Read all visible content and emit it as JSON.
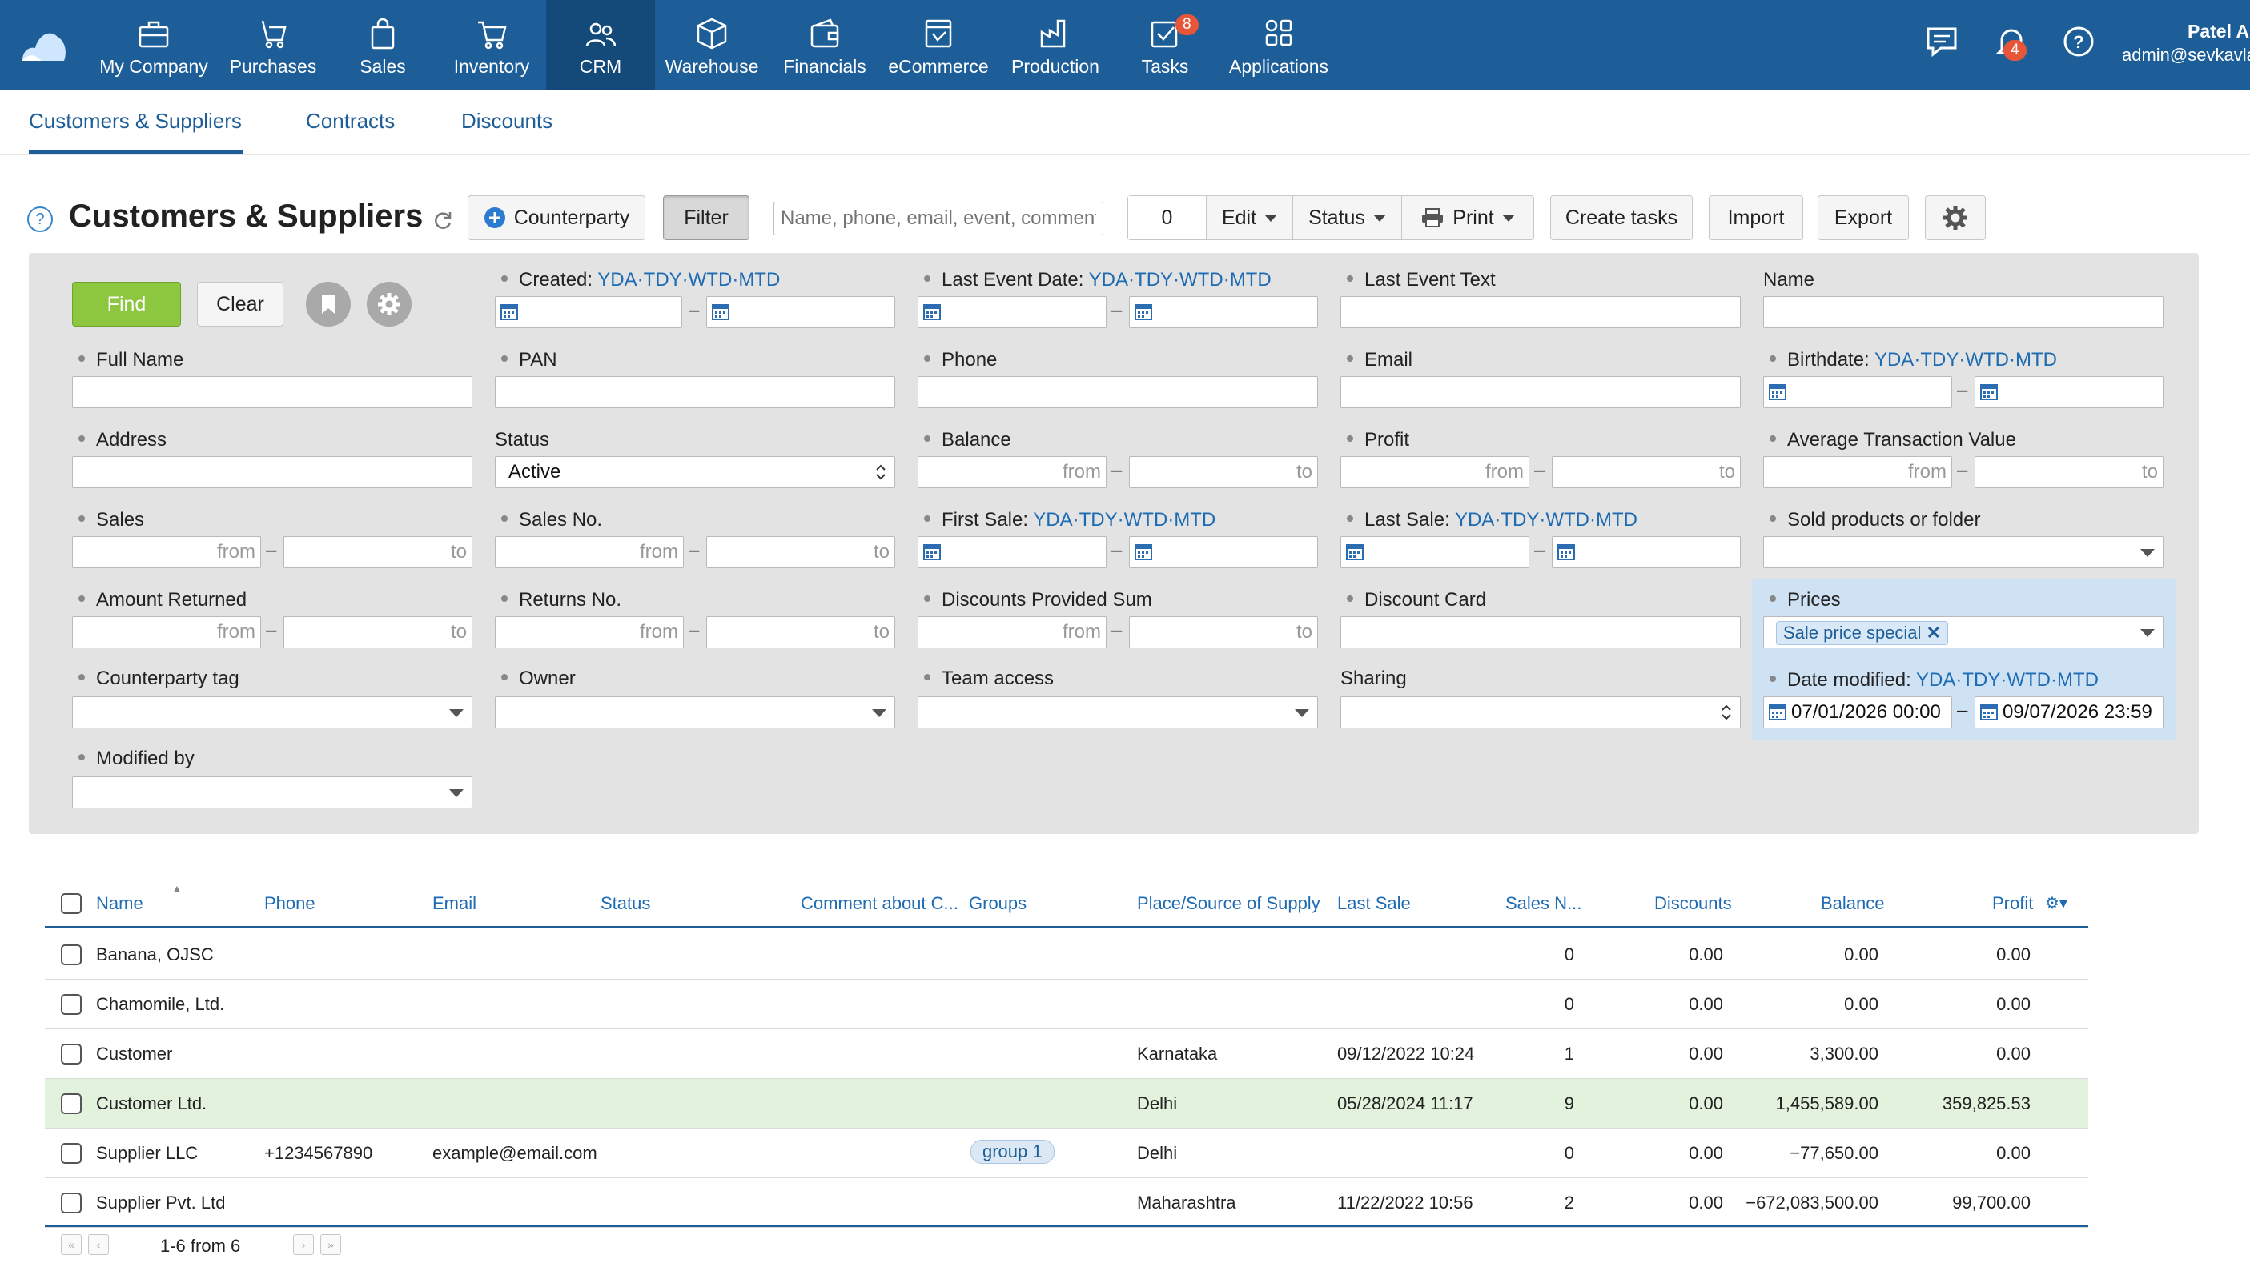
{
  "topnav": {
    "items": [
      {
        "label": "My Company",
        "icon": "briefcase-icon"
      },
      {
        "label": "Purchases",
        "icon": "purchases-icon"
      },
      {
        "label": "Sales",
        "icon": "shopping-bag-icon"
      },
      {
        "label": "Inventory",
        "icon": "cart-icon"
      },
      {
        "label": "CRM",
        "icon": "users-icon"
      },
      {
        "label": "Warehouse",
        "icon": "box-icon"
      },
      {
        "label": "Financials",
        "icon": "wallet-icon"
      },
      {
        "label": "eCommerce",
        "icon": "storefront-icon"
      },
      {
        "label": "Production",
        "icon": "factory-icon"
      },
      {
        "label": "Tasks",
        "icon": "checkbox-icon"
      },
      {
        "label": "Applications",
        "icon": "apps-grid-icon"
      }
    ],
    "tasks_badge": "8",
    "notifications_badge": "4",
    "user_name": "Patel A",
    "user_email": "admin@sevkavla"
  },
  "subtabs": [
    "Customers & Suppliers",
    "Contracts",
    "Discounts"
  ],
  "toolbar": {
    "title": "Customers & Suppliers",
    "counterparty_label": "Counterparty",
    "filter_label": "Filter",
    "search_placeholder": "Name, phone, email, event, comment",
    "count_value": "0",
    "edit_label": "Edit",
    "status_label": "Status",
    "print_label": "Print",
    "create_tasks_label": "Create tasks",
    "import_label": "Import",
    "export_label": "Export"
  },
  "filter": {
    "find_label": "Find",
    "clear_label": "Clear",
    "quick_dates": [
      "YDA",
      "TDY",
      "WTD",
      "MTD"
    ],
    "labels": {
      "created": "Created:",
      "last_event_date": "Last Event Date:",
      "last_event_text": "Last Event Text",
      "name": "Name",
      "full_name": "Full Name",
      "pan": "PAN",
      "phone": "Phone",
      "email": "Email",
      "birthdate": "Birthdate:",
      "address": "Address",
      "status": "Status",
      "balance": "Balance",
      "profit": "Profit",
      "avg_transaction": "Average Transaction Value",
      "sales": "Sales",
      "sales_no": "Sales No.",
      "first_sale": "First Sale:",
      "last_sale": "Last Sale:",
      "sold_products": "Sold products or folder",
      "amount_returned": "Amount Returned",
      "returns_no": "Returns No.",
      "discounts_sum": "Discounts Provided Sum",
      "discount_card": "Discount Card",
      "prices": "Prices",
      "counterparty_tag": "Counterparty tag",
      "owner": "Owner",
      "team_access": "Team access",
      "sharing": "Sharing",
      "date_modified": "Date modified:",
      "modified_by": "Modified by"
    },
    "from_placeholder": "from",
    "to_placeholder": "to",
    "status_value": "Active",
    "prices_chip": "Sale price special",
    "date_modified_from": "07/01/2026 00:00",
    "date_modified_to": "09/07/2026 23:59"
  },
  "table": {
    "columns": [
      "Name",
      "Phone",
      "Email",
      "Status",
      "Comment about C...",
      "Groups",
      "Place/Source of Supply",
      "Last Sale",
      "Sales N...",
      "Discounts",
      "Balance",
      "Profit"
    ],
    "rows": [
      {
        "name": "Banana, OJSC",
        "phone": "",
        "email": "",
        "group": "",
        "place": "",
        "last_sale": "",
        "sales_no": "0",
        "discounts": "0.00",
        "balance": "0.00",
        "profit": "0.00"
      },
      {
        "name": "Chamomile, Ltd.",
        "phone": "",
        "email": "",
        "group": "",
        "place": "",
        "last_sale": "",
        "sales_no": "0",
        "discounts": "0.00",
        "balance": "0.00",
        "profit": "0.00"
      },
      {
        "name": "Customer",
        "phone": "",
        "email": "",
        "group": "",
        "place": "Karnataka",
        "last_sale": "09/12/2022 10:24",
        "sales_no": "1",
        "discounts": "0.00",
        "balance": "3,300.00",
        "profit": "0.00"
      },
      {
        "name": "Customer Ltd.",
        "phone": "",
        "email": "",
        "group": "",
        "place": "Delhi",
        "last_sale": "05/28/2024 11:17",
        "sales_no": "9",
        "discounts": "0.00",
        "balance": "1,455,589.00",
        "profit": "359,825.53"
      },
      {
        "name": "Supplier LLC",
        "phone": "+1234567890",
        "email": "example@email.com",
        "group": "group 1",
        "place": "Delhi",
        "last_sale": "",
        "sales_no": "0",
        "discounts": "0.00",
        "balance": "−77,650.00",
        "profit": "0.00"
      },
      {
        "name": "Supplier Pvt. Ltd",
        "phone": "",
        "email": "",
        "group": "",
        "place": "Maharashtra",
        "last_sale": "11/22/2022 10:56",
        "sales_no": "2",
        "discounts": "0.00",
        "balance": "−672,083,500.00",
        "profit": "99,700.00"
      }
    ],
    "pagination": "1-6 from 6"
  },
  "colors": {
    "nav_bg": "#1d5e98",
    "nav_active": "#144a7a",
    "link": "#1d6bb3",
    "find_green": "#8dc63f",
    "highlight_row": "#e2f2dc",
    "badge_red": "#e8563a"
  }
}
